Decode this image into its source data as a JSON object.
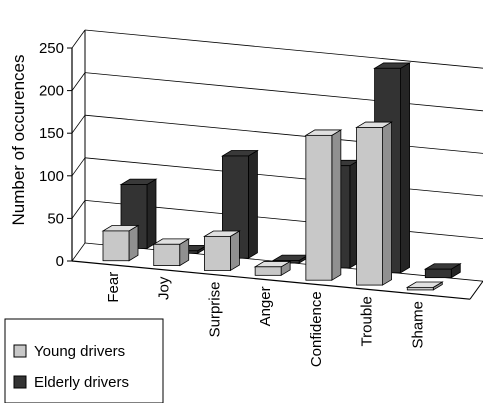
{
  "chart_data": {
    "type": "bar",
    "style": "3d-clustered",
    "title": "",
    "xlabel": "",
    "ylabel": "Number of occurences",
    "ylim": [
      0,
      250
    ],
    "yticks": [
      0,
      50,
      100,
      150,
      200,
      250
    ],
    "grid": true,
    "legend_position": "bottom-left",
    "categories": [
      "Fear",
      "Joy",
      "Surprise",
      "Anger",
      "Confidence",
      "Trouble",
      "Shame"
    ],
    "series": [
      {
        "name": "Young drivers",
        "color": "#c8c8c8",
        "values": [
          35,
          25,
          40,
          10,
          170,
          185,
          3
        ]
      },
      {
        "name": "Elderly drivers",
        "color": "#333333",
        "values": [
          75,
          3,
          120,
          3,
          120,
          240,
          10
        ]
      }
    ]
  }
}
